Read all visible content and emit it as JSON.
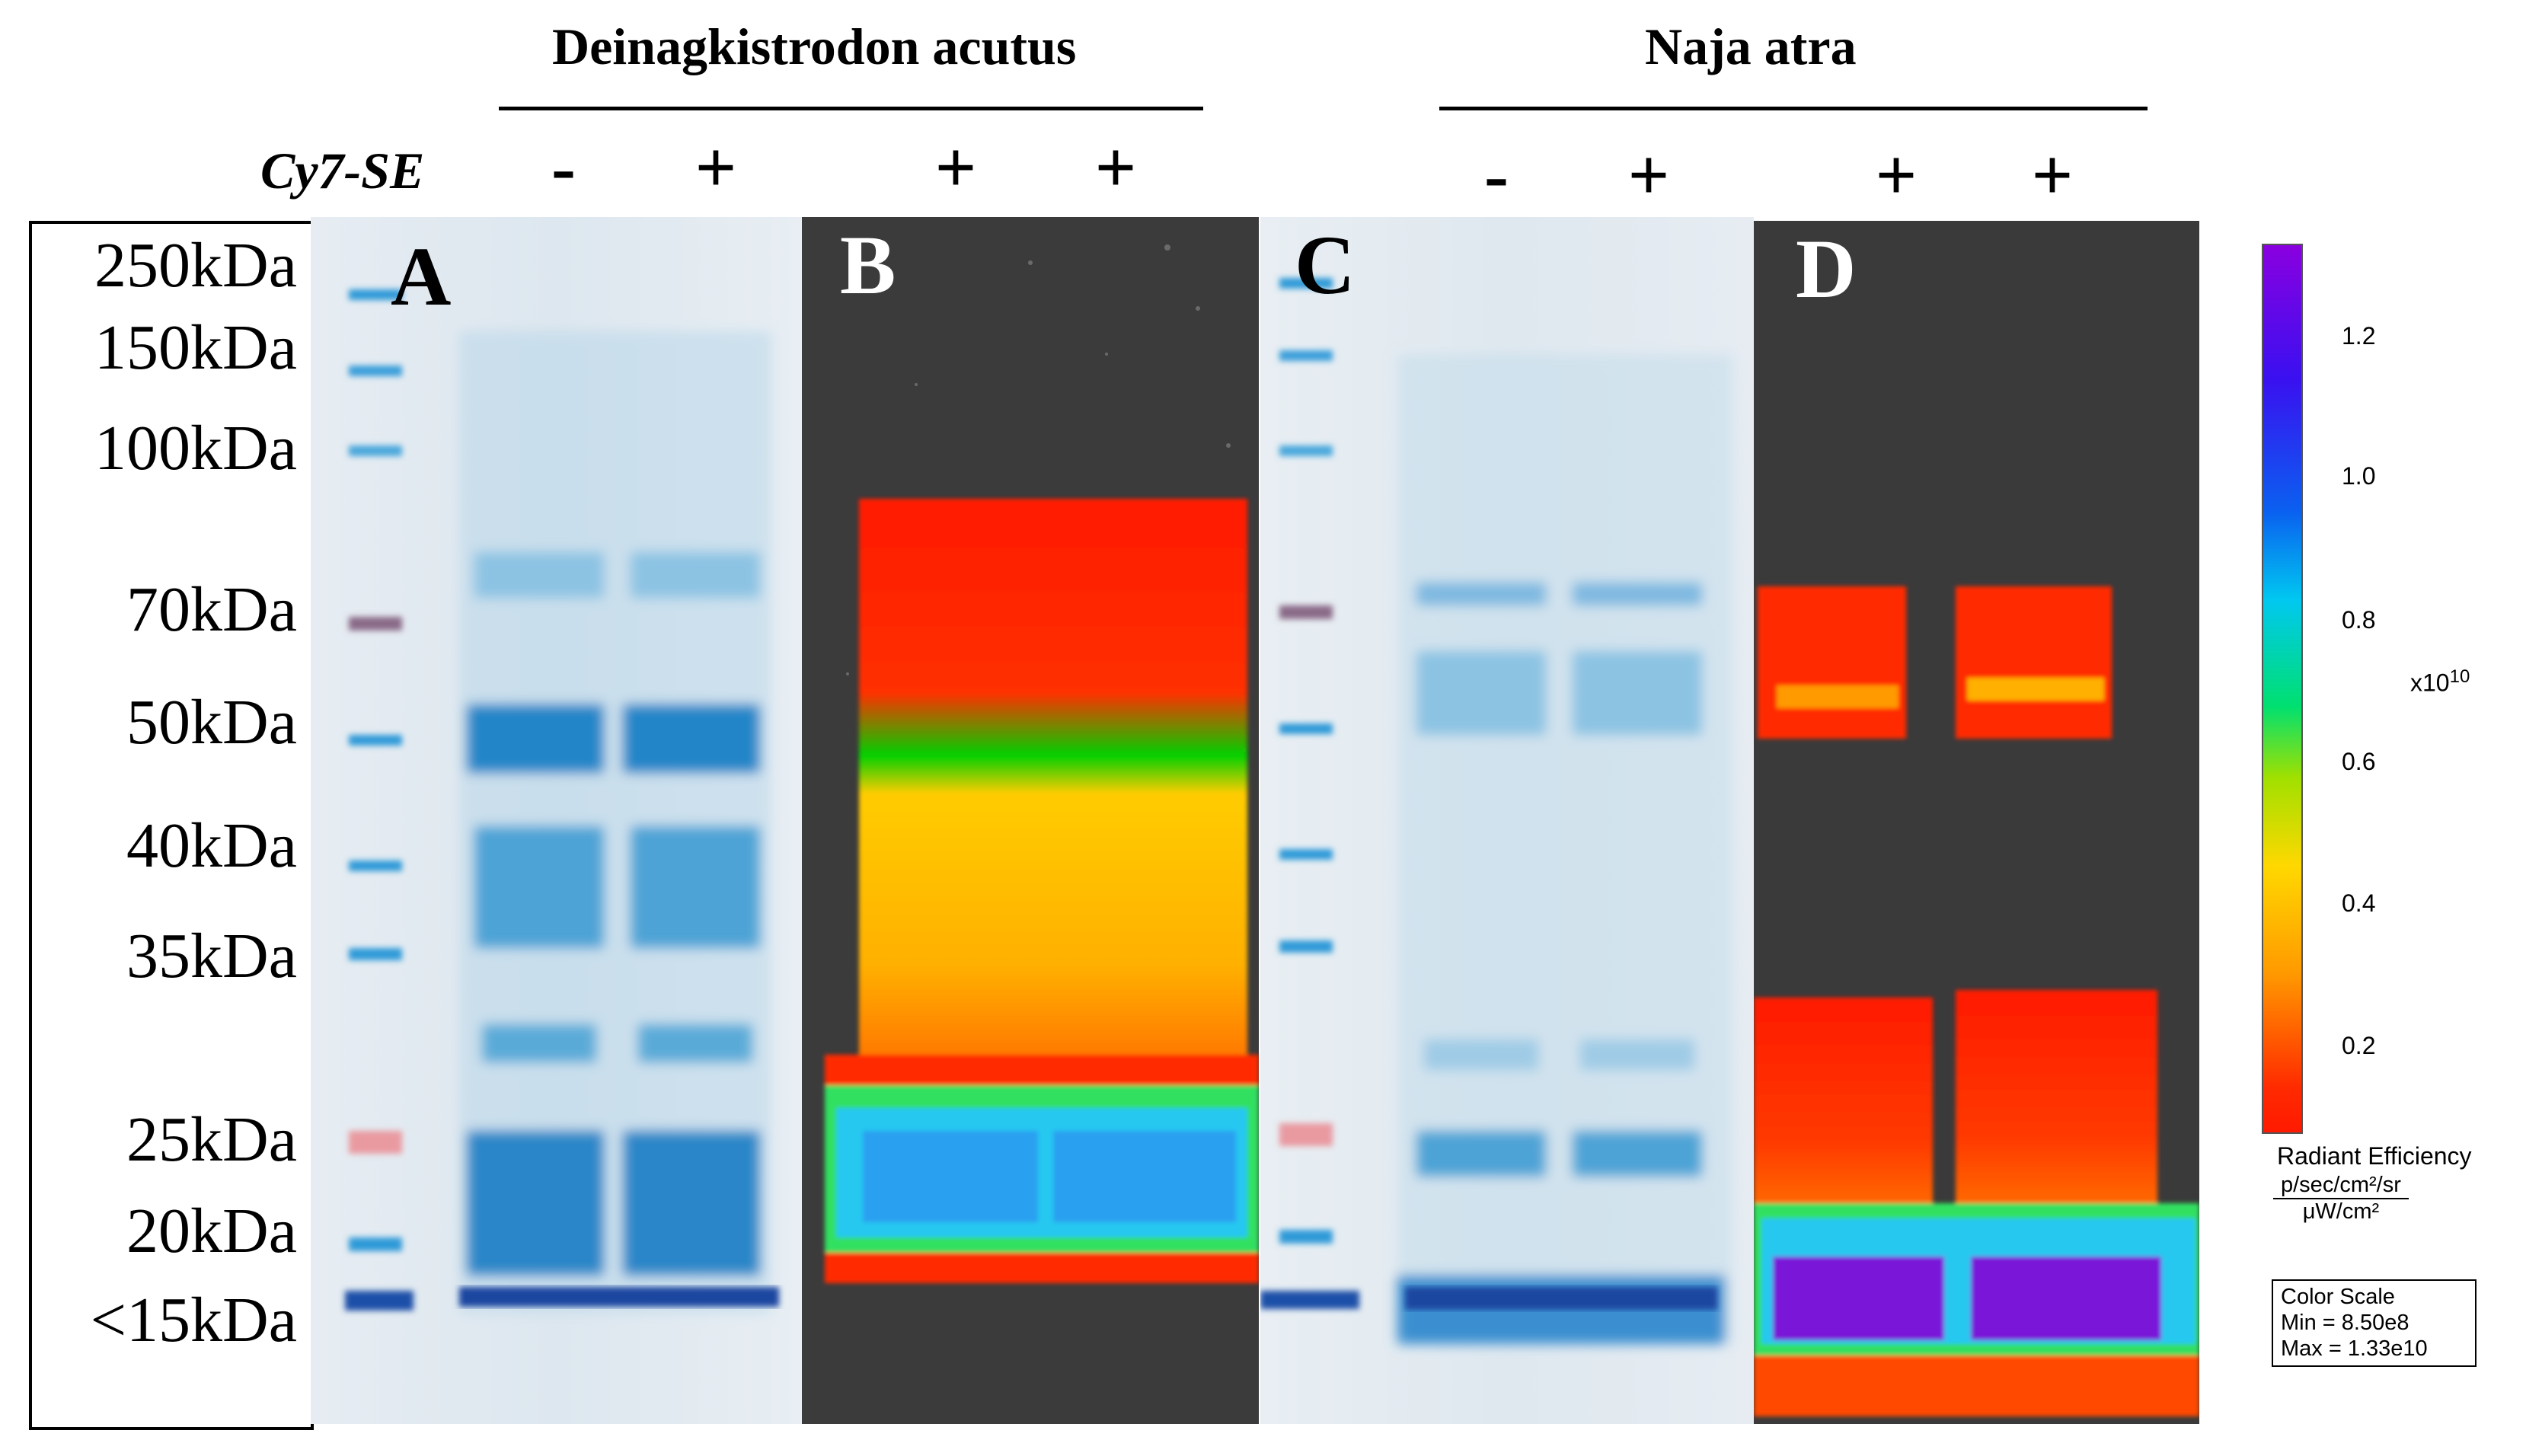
{
  "header": {
    "species_left": "Deinagkistrodon acutus",
    "species_right": "Naja atra",
    "reagent_label": "Cy7-SE",
    "lane_signs_left": [
      "-",
      "+",
      "+",
      "+"
    ],
    "lane_signs_right": [
      "-",
      "+",
      "+",
      "+"
    ]
  },
  "marker_ladder": [
    "250kDa",
    "150kDa",
    "100kDa",
    "70kDa",
    "50kDa",
    "40kDa",
    "35kDa",
    "25kDa",
    "20kDa",
    "<15kDa"
  ],
  "panels": {
    "a": "A",
    "b": "B",
    "c": "C",
    "d": "D"
  },
  "colorbar": {
    "ticks": [
      "1.2",
      "1.0",
      "0.8",
      "0.6",
      "0.4",
      "0.2"
    ],
    "exponent_base": "x10",
    "exponent_power": "10",
    "unit_title": "Radiant Efficiency",
    "unit_numerator": "p/sec/cm²/sr",
    "unit_denominator": "μW/cm²",
    "scale_box": {
      "title": "Color Scale",
      "min": "Min = 8.50e8",
      "max": "Max = 1.33e10"
    }
  },
  "colors": {
    "coomassie_bg": "#dfe7ee",
    "coomassie_band": "#2a8fd0",
    "fluor_bg": "#3a3a3a",
    "heat_low": "#ff1a00",
    "heat_mid": "#ffd800",
    "heat_high": "#6a00e0"
  }
}
